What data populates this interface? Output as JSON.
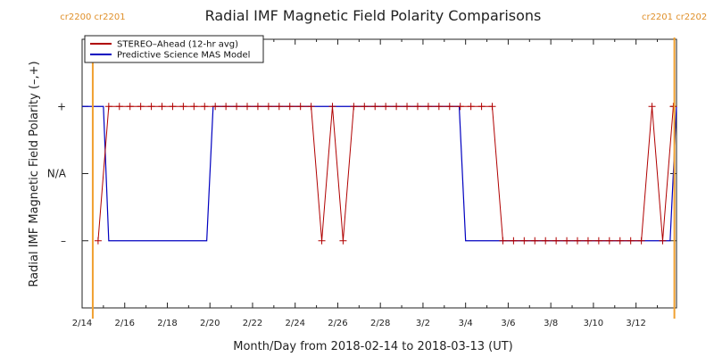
{
  "chart_data": {
    "type": "line",
    "title": "Radial IMF Magnetic Field Polarity Comparisons",
    "xlabel": "Month/Day from 2018-02-14 to 2018-03-13 (UT)",
    "ylabel": "Radial IMF Magnetic Field Polarity (–,+)",
    "xlim": [
      0,
      27.9
    ],
    "ylim": [
      -2,
      2
    ],
    "x_ticks": [
      {
        "x": 0,
        "label": "2/14"
      },
      {
        "x": 2,
        "label": "2/16"
      },
      {
        "x": 4,
        "label": "2/18"
      },
      {
        "x": 6,
        "label": "2/20"
      },
      {
        "x": 8,
        "label": "2/22"
      },
      {
        "x": 10,
        "label": "2/24"
      },
      {
        "x": 12,
        "label": "2/26"
      },
      {
        "x": 14,
        "label": "2/28"
      },
      {
        "x": 16,
        "label": "3/2"
      },
      {
        "x": 18,
        "label": "3/4"
      },
      {
        "x": 20,
        "label": "3/6"
      },
      {
        "x": 22,
        "label": "3/8"
      },
      {
        "x": 24,
        "label": "3/10"
      },
      {
        "x": 26,
        "label": "3/12"
      }
    ],
    "y_ticks": [
      {
        "y": 1,
        "label": "+"
      },
      {
        "y": 0,
        "label": "N/A"
      },
      {
        "y": -1,
        "label": "–"
      }
    ],
    "carrington_markers": [
      {
        "x": 0.5,
        "labels": [
          "cr2200",
          "cr2201"
        ]
      },
      {
        "x": 27.8,
        "labels": [
          "cr2201",
          "cr2202"
        ]
      }
    ],
    "legend_position": "top-left",
    "series": [
      {
        "name": "STEREO–Ahead (12-hr avg)",
        "color": "#b00000",
        "x": [
          0.75,
          1.25,
          1.75,
          2.25,
          2.75,
          3.25,
          3.75,
          4.25,
          4.75,
          5.25,
          5.75,
          6.25,
          6.75,
          7.25,
          7.75,
          8.25,
          8.75,
          9.25,
          9.75,
          10.25,
          10.75,
          11.25,
          11.75,
          12.25,
          12.75,
          13.25,
          13.75,
          14.25,
          14.75,
          15.25,
          15.75,
          16.25,
          16.75,
          17.25,
          17.75,
          18.25,
          18.75,
          19.25,
          19.75,
          20.25,
          20.75,
          21.25,
          21.75,
          22.25,
          22.75,
          23.25,
          23.75,
          24.25,
          24.75,
          25.25,
          25.75,
          26.25,
          26.75,
          27.25,
          27.75
        ],
        "values": [
          -1,
          1,
          1,
          1,
          1,
          1,
          1,
          1,
          1,
          1,
          1,
          1,
          1,
          1,
          1,
          1,
          1,
          1,
          1,
          1,
          1,
          -1,
          1,
          -1,
          1,
          1,
          1,
          1,
          1,
          1,
          1,
          1,
          1,
          1,
          1,
          1,
          1,
          1,
          -1,
          -1,
          -1,
          -1,
          -1,
          -1,
          -1,
          -1,
          -1,
          -1,
          -1,
          -1,
          -1,
          -1,
          1,
          -1,
          1
        ]
      },
      {
        "name": "Predictive Science MAS Model",
        "color": "#0000c0",
        "x": [
          0,
          1.0,
          1.25,
          2.0,
          5.85,
          6.15,
          17.7,
          18.0,
          27.0,
          27.6,
          27.9
        ],
        "values": [
          1,
          1,
          -1,
          -1,
          -1,
          1,
          1,
          -1,
          -1,
          -1,
          1
        ]
      }
    ]
  }
}
